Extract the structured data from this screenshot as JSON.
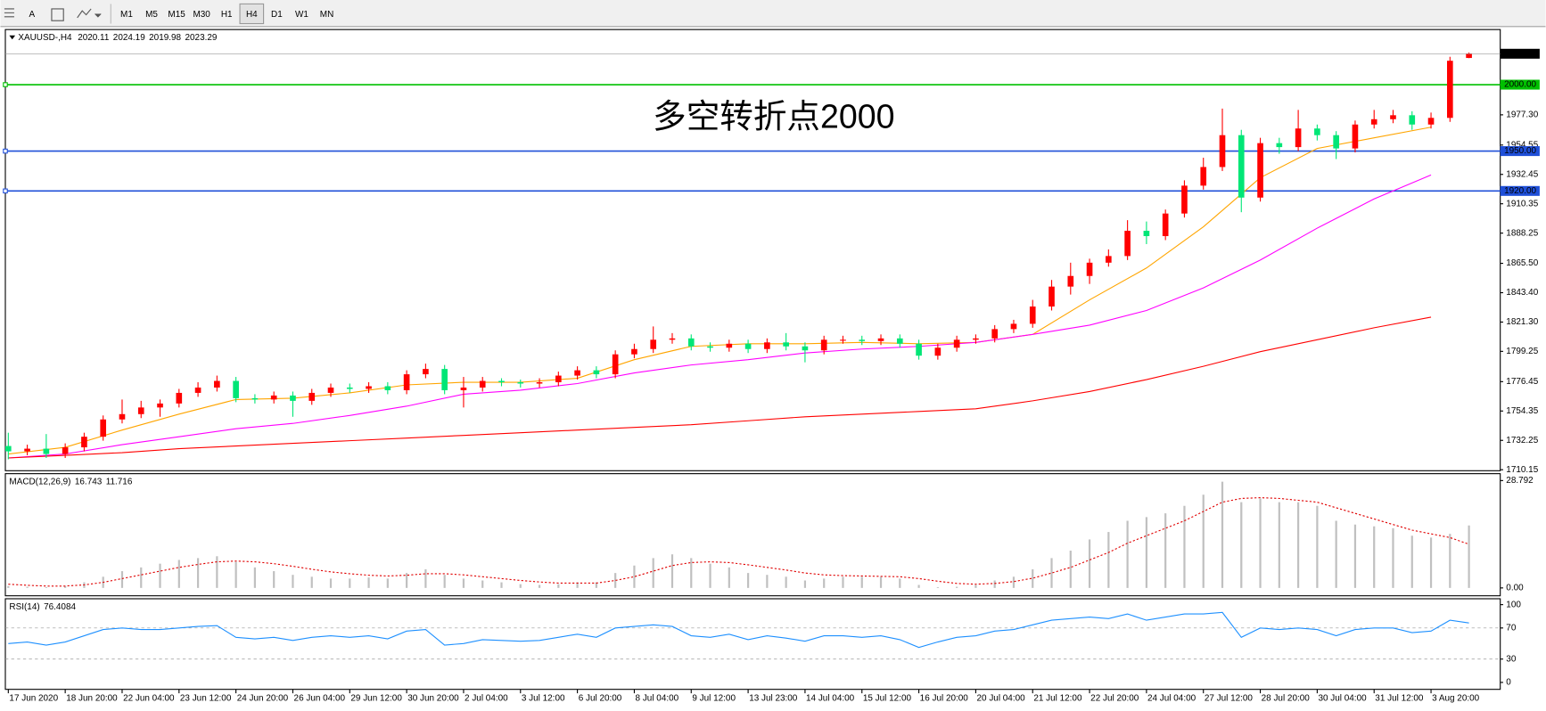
{
  "toolbar": {
    "tools": [
      "A"
    ],
    "timeframes": [
      "M1",
      "M5",
      "M15",
      "M30",
      "H1",
      "H4",
      "D1",
      "W1",
      "MN"
    ],
    "active": "H4"
  },
  "chart_data": [
    {
      "type": "candlestick",
      "symbol": "XAUUSD-,H4",
      "annotation": "多空转折点2000",
      "annotation_color": "#e8141c",
      "up_color": "#ff0000",
      "down_color": "#00e676",
      "categories": [
        "17 Jun 2020",
        "18 Jun 20:00",
        "22 Jun 04:00",
        "23 Jun 12:00",
        "24 Jun 20:00",
        "26 Jun 04:00",
        "29 Jun 12:00",
        "30 Jun 20:00",
        "2 Jul 04:00",
        "3 Jul 12:00",
        "6 Jul 20:00",
        "8 Jul 04:00",
        "9 Jul 12:00",
        "13 Jul 23:00",
        "14 Jul 04:00",
        "15 Jul 12:00",
        "16 Jul 20:00",
        "20 Jul 04:00",
        "21 Jul 12:00",
        "22 Jul 20:00",
        "24 Jul 04:00",
        "27 Jul 12:00",
        "28 Jul 20:00",
        "30 Jul 04:00",
        "31 Jul 12:00",
        "3 Aug 20:00"
      ],
      "candles": {
        "open": [
          1728,
          1724,
          1726,
          1722,
          1727,
          1735,
          1748,
          1752,
          1757,
          1760,
          1768,
          1772,
          1777,
          1764,
          1763,
          1766,
          1762,
          1768,
          1772,
          1771,
          1773,
          1770,
          1782,
          1786,
          1770,
          1772,
          1777,
          1776,
          1775,
          1776,
          1781,
          1785,
          1782,
          1797,
          1801,
          1808,
          1809,
          1803,
          1802,
          1805,
          1801,
          1806,
          1803,
          1800,
          1808,
          1808,
          1807,
          1809,
          1805,
          1796,
          1802,
          1808,
          1809,
          1816,
          1820,
          1833,
          1848,
          1856,
          1866,
          1871,
          1890,
          1886,
          1903,
          1924,
          1938,
          1962,
          1915,
          1956,
          1953,
          1967,
          1962,
          1952,
          1970,
          1974,
          1977,
          1970,
          1975,
          2020.11
        ],
        "high": [
          1738,
          1729,
          1737,
          1730,
          1738,
          1751,
          1763,
          1762,
          1763,
          1771,
          1776,
          1781,
          1780,
          1767,
          1769,
          1769,
          1771,
          1775,
          1775,
          1776,
          1776,
          1785,
          1790,
          1789,
          1780,
          1780,
          1779,
          1778,
          1779,
          1784,
          1788,
          1788,
          1800,
          1805,
          1818,
          1813,
          1812,
          1806,
          1808,
          1808,
          1809,
          1813,
          1806,
          1811,
          1811,
          1811,
          1812,
          1812,
          1808,
          1805,
          1811,
          1812,
          1819,
          1823,
          1838,
          1853,
          1866,
          1869,
          1876,
          1898,
          1897,
          1906,
          1928,
          1945,
          1982,
          1966,
          1960,
          1960,
          1981,
          1970,
          1965,
          1973,
          1981,
          1981,
          1980,
          1979,
          2021,
          2024.19
        ],
        "low": [
          1718,
          1721,
          1719,
          1719,
          1724,
          1732,
          1745,
          1749,
          1750,
          1757,
          1765,
          1769,
          1761,
          1760,
          1760,
          1750,
          1759,
          1765,
          1768,
          1768,
          1767,
          1767,
          1779,
          1767,
          1757,
          1769,
          1773,
          1772,
          1772,
          1773,
          1778,
          1779,
          1779,
          1794,
          1798,
          1805,
          1800,
          1799,
          1799,
          1798,
          1798,
          1800,
          1791,
          1797,
          1805,
          1804,
          1804,
          1802,
          1793,
          1793,
          1799,
          1805,
          1806,
          1813,
          1817,
          1830,
          1842,
          1850,
          1863,
          1868,
          1880,
          1883,
          1900,
          1921,
          1935,
          1904,
          1912,
          1948,
          1950,
          1958,
          1944,
          1949,
          1967,
          1971,
          1966,
          1967,
          1972,
          2019.98
        ],
        "close": [
          1724,
          1726,
          1722,
          1727,
          1735,
          1748,
          1752,
          1757,
          1760,
          1768,
          1772,
          1777,
          1764,
          1763,
          1766,
          1762,
          1768,
          1772,
          1771,
          1773,
          1770,
          1782,
          1786,
          1770,
          1772,
          1777,
          1776,
          1775,
          1776,
          1781,
          1785,
          1782,
          1797,
          1801,
          1808,
          1809,
          1803,
          1802,
          1805,
          1801,
          1806,
          1803,
          1800,
          1808,
          1808,
          1807,
          1809,
          1805,
          1796,
          1802,
          1808,
          1809,
          1816,
          1820,
          1833,
          1848,
          1856,
          1866,
          1871,
          1890,
          1886,
          1903,
          1924,
          1938,
          1962,
          1915,
          1956,
          1953,
          1967,
          1962,
          1952,
          1970,
          1974,
          1977,
          1970,
          1975,
          2018,
          2023.29
        ]
      },
      "ma": [
        {
          "color": "#ffa500",
          "values": [
            1722,
            1727,
            1740,
            1752,
            1763,
            1764,
            1768,
            1774,
            1776,
            1776,
            1779,
            1793,
            1803,
            1805,
            1805,
            1806,
            1805,
            1806,
            1812,
            1838,
            1862,
            1893,
            1930,
            1952,
            1960,
            1968
          ]
        },
        {
          "color": "#ff00ff",
          "values": [
            1719,
            1722,
            1729,
            1735,
            1741,
            1745,
            1751,
            1758,
            1767,
            1770,
            1775,
            1783,
            1789,
            1793,
            1798,
            1801,
            1803,
            1806,
            1812,
            1819,
            1830,
            1847,
            1868,
            1892,
            1914,
            1932
          ]
        },
        {
          "color": "#ff0000",
          "values": [
            1719,
            1721,
            1723,
            1726,
            1728,
            1730,
            1732,
            1734,
            1736,
            1738,
            1740,
            1742,
            1744,
            1747,
            1750,
            1752,
            1754,
            1756,
            1762,
            1769,
            1778,
            1788,
            1799,
            1808,
            1817,
            1825
          ]
        }
      ],
      "levels": [
        {
          "value": 2000,
          "label": "2000.00",
          "color": "#00c000"
        },
        {
          "value": 1950,
          "label": "1950.00",
          "color": "#1f4fd8"
        },
        {
          "value": 1920,
          "label": "1920.00",
          "color": "#1f4fd8"
        }
      ],
      "ylim": [
        1709.4,
        2041.5
      ],
      "yticks": [
        {
          "value": 1977.3,
          "label": "1977.30"
        },
        1954.55,
        1932.45,
        1910.35,
        1888.25,
        {
          "value": 1865.5,
          "label": "1865.50"
        },
        {
          "value": 1843.4,
          "label": "1843.40"
        },
        {
          "value": 1821.3,
          "label": "1821.30"
        },
        1799.25,
        1776.45,
        1754.35,
        1732.25,
        1710.15
      ]
    },
    {
      "type": "macd",
      "indicator": "MACD(12,26,9)",
      "color": "#c0c0c0",
      "signal_color": "#e00000",
      "histogram": [
        0.5,
        0.3,
        0.2,
        0.5,
        1.5,
        3,
        4.5,
        5.5,
        6.5,
        7.5,
        8,
        8.5,
        7,
        5.5,
        4.5,
        3.5,
        3,
        2.5,
        2.5,
        2.8,
        2.5,
        4,
        5,
        3.5,
        2.5,
        2,
        1.5,
        1,
        0.8,
        1,
        1.5,
        1.5,
        4,
        6,
        8,
        9,
        8,
        6.5,
        5.5,
        4,
        3.5,
        3,
        2,
        2.5,
        3,
        3,
        3,
        2.5,
        0.8,
        0.2,
        0.3,
        0.8,
        2,
        3,
        5,
        8,
        10,
        13,
        15,
        18,
        19,
        20,
        22,
        25,
        28.5,
        23,
        24,
        23,
        23,
        22,
        18,
        17,
        16.5,
        16,
        14,
        13.5,
        14.5,
        16.743
      ],
      "signal": [
        1,
        0.7,
        0.5,
        0.5,
        0.8,
        1.5,
        2.5,
        3.5,
        4.5,
        5.5,
        6.3,
        7,
        7.2,
        7,
        6.5,
        5.8,
        5,
        4.3,
        3.8,
        3.4,
        3.2,
        3.4,
        3.8,
        3.8,
        3.5,
        3,
        2.5,
        2,
        1.6,
        1.3,
        1.3,
        1.3,
        2,
        3,
        4.5,
        6,
        6.8,
        7,
        6.8,
        6.2,
        5.5,
        4.8,
        4,
        3.5,
        3.3,
        3.2,
        3.1,
        3,
        2.5,
        1.8,
        1.2,
        1,
        1.2,
        1.7,
        2.6,
        4,
        5.5,
        7.5,
        9.5,
        12,
        14,
        16,
        18,
        20.5,
        23,
        24,
        24.2,
        24,
        23.5,
        23,
        21.5,
        20,
        18.5,
        17,
        15.5,
        14.5,
        13.5,
        11.716
      ],
      "ylim": [
        -2.11,
        30.64
      ],
      "yticks": [
        28.792,
        {
          "value": 0,
          "label": "0.00"
        }
      ]
    },
    {
      "type": "line",
      "indicator": "RSI(14)",
      "color": "#1e90ff",
      "values": [
        50,
        52,
        48,
        52,
        60,
        68,
        70,
        68,
        68,
        70,
        72,
        73,
        58,
        56,
        58,
        54,
        58,
        60,
        58,
        60,
        56,
        66,
        68,
        48,
        50,
        55,
        54,
        53,
        54,
        58,
        62,
        58,
        70,
        72,
        74,
        72,
        60,
        58,
        62,
        55,
        60,
        57,
        53,
        60,
        60,
        58,
        60,
        55,
        45,
        52,
        58,
        60,
        66,
        68,
        74,
        80,
        82,
        84,
        82,
        88,
        80,
        84,
        88,
        88,
        90,
        58,
        70,
        68,
        70,
        68,
        60,
        68,
        70,
        70,
        64,
        66,
        80,
        76.4084
      ],
      "ylim": [
        -8.9,
        107.6
      ],
      "yticks": [
        0,
        30,
        70,
        100
      ],
      "grid_levels": [
        30,
        70
      ]
    }
  ]
}
